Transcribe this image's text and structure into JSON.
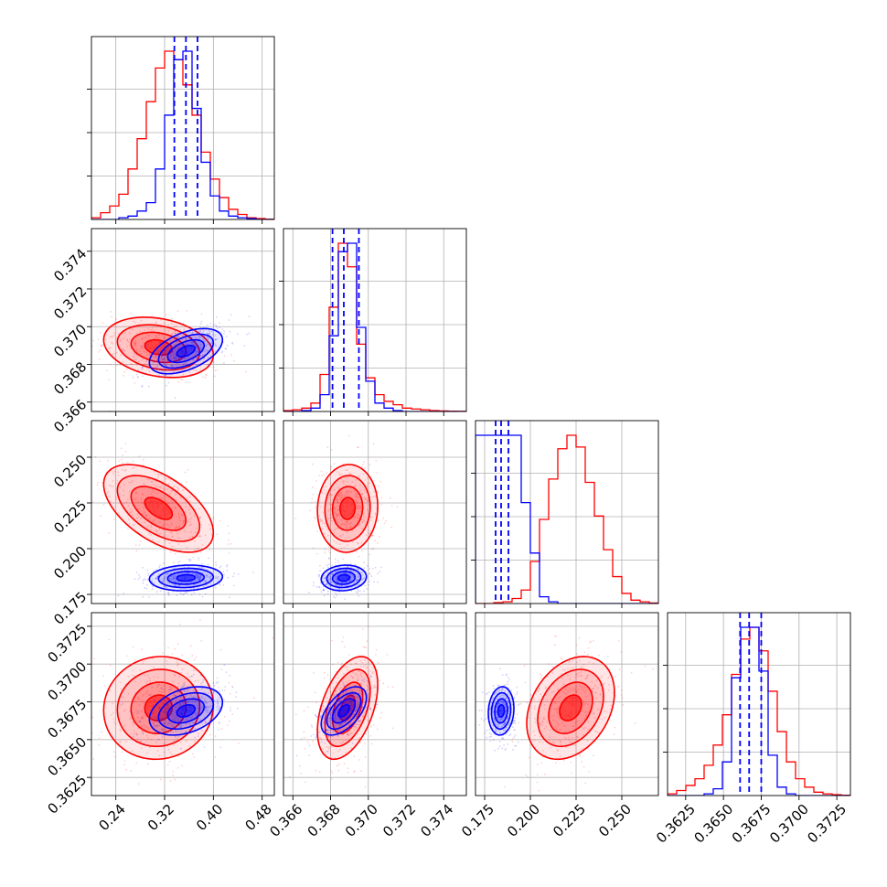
{
  "chart_data": {
    "type": "corner",
    "title": "",
    "parameters": [
      {
        "ticks": [
          "0.24",
          "0.32",
          "0.40",
          "0.48"
        ],
        "range": [
          0.2,
          0.5
        ]
      },
      {
        "ticks": [
          "0.366",
          "0.368",
          "0.370",
          "0.372",
          "0.374"
        ],
        "range": [
          0.3655,
          0.3752
        ]
      },
      {
        "ticks": [
          "0.175",
          "0.200",
          "0.225",
          "0.250"
        ],
        "range": [
          0.17,
          0.27
        ]
      },
      {
        "ticks": [
          "0.3625",
          "0.3650",
          "0.3675",
          "0.3700",
          "0.3725"
        ],
        "range": [
          0.3613,
          0.3734
        ]
      }
    ],
    "series": [
      {
        "color": "#ff0000",
        "means": [
          0.31,
          0.3689,
          0.222,
          0.3671
        ],
        "sigmas": [
          0.045,
          0.0008,
          0.012,
          0.0017
        ],
        "quantiles": [],
        "hist_heights": [
          [
            0.01,
            0.04,
            0.08,
            0.15,
            0.3,
            0.48,
            0.7,
            0.9,
            1.0,
            0.95,
            0.8,
            0.62,
            0.4,
            0.24,
            0.13,
            0.06,
            0.03,
            0.01,
            0.005,
            0.002
          ],
          [
            0.005,
            0.01,
            0.02,
            0.05,
            0.22,
            0.62,
            1.0,
            0.86,
            0.4,
            0.2,
            0.1,
            0.06,
            0.04,
            0.02,
            0.015,
            0.01,
            0.005,
            0.003,
            0.002,
            0.001
          ],
          [
            0.0,
            0.0,
            0.005,
            0.01,
            0.03,
            0.08,
            0.25,
            0.5,
            0.74,
            0.92,
            1.0,
            0.93,
            0.72,
            0.52,
            0.32,
            0.16,
            0.06,
            0.02,
            0.01,
            0.003
          ],
          [
            0.01,
            0.03,
            0.06,
            0.1,
            0.18,
            0.3,
            0.48,
            0.72,
            0.93,
            1.0,
            0.86,
            0.62,
            0.38,
            0.2,
            0.1,
            0.05,
            0.02,
            0.01,
            0.005,
            0.002
          ]
        ]
      },
      {
        "color": "#0000ff",
        "means": [
          0.355,
          0.3687,
          0.184,
          0.3669
        ],
        "sigmas": [
          0.03,
          0.0006,
          0.0035,
          0.0008
        ],
        "quantiles": [
          [
            0.336,
            0.355,
            0.374
          ],
          [
            0.3681,
            0.3687,
            0.3695
          ],
          [
            0.181,
            0.184,
            0.188
          ],
          [
            0.3661,
            0.3667,
            0.3675
          ]
        ],
        "hist_heights": [
          [
            0.0,
            0.0,
            0.0,
            0.01,
            0.02,
            0.05,
            0.1,
            0.3,
            0.62,
            0.95,
            1.0,
            0.66,
            0.34,
            0.14,
            0.05,
            0.02,
            0.01,
            0.005,
            0.0,
            0.0
          ],
          [
            0.0,
            0.0,
            0.005,
            0.02,
            0.1,
            0.45,
            0.95,
            1.0,
            0.5,
            0.18,
            0.05,
            0.02,
            0.005,
            0.0,
            0.0,
            0.0,
            0.0,
            0.0,
            0.0,
            0.0
          ],
          [
            1.0,
            1.0,
            1.0,
            1.0,
            1.0,
            0.6,
            0.3,
            0.04,
            0.01,
            0.0,
            0.0,
            0.0,
            0.0,
            0.0,
            0.0,
            0.0,
            0.0,
            0.0,
            0.0,
            0.0
          ],
          [
            0.0,
            0.0,
            0.0,
            0.0,
            0.01,
            0.04,
            0.2,
            0.7,
            1.0,
            1.0,
            0.74,
            0.24,
            0.05,
            0.01,
            0.0,
            0.0,
            0.0,
            0.0,
            0.0,
            0.0
          ]
        ]
      }
    ],
    "correlations": {
      "red": {
        "1-0": -0.25,
        "2-0": -0.55,
        "2-1": 0.05,
        "3-0": 0.05,
        "3-1": 0.45,
        "3-2": 0.3
      },
      "blue": {
        "1-0": 0.5,
        "2-0": 0.1,
        "2-1": 0.1,
        "3-0": 0.35,
        "3-1": 0.55,
        "3-2": 0.1
      }
    },
    "contour_levels_sigma": [
      0.5,
      1.0,
      1.5,
      2.0
    ],
    "grid": true
  }
}
